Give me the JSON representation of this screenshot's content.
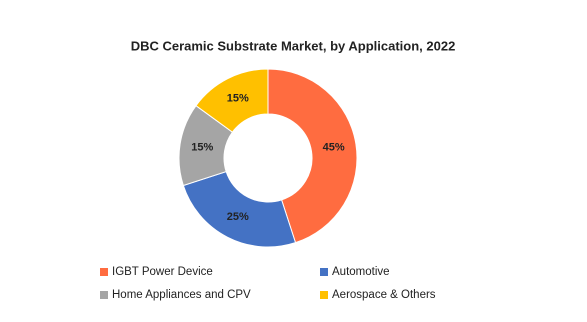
{
  "chart_data": {
    "type": "donut",
    "title": "DBC Ceramic Substrate Market, by Application, 2022",
    "categories": [
      "IGBT Power Device",
      "Automotive",
      "Home Appliances and CPV",
      "Aerospace & Others"
    ],
    "values": [
      45,
      25,
      15,
      15
    ],
    "value_labels": [
      "45%",
      "25%",
      "15%",
      "15%"
    ],
    "colors": [
      "#ff6c40",
      "#4472c4",
      "#a5a5a5",
      "#ffc000"
    ]
  }
}
